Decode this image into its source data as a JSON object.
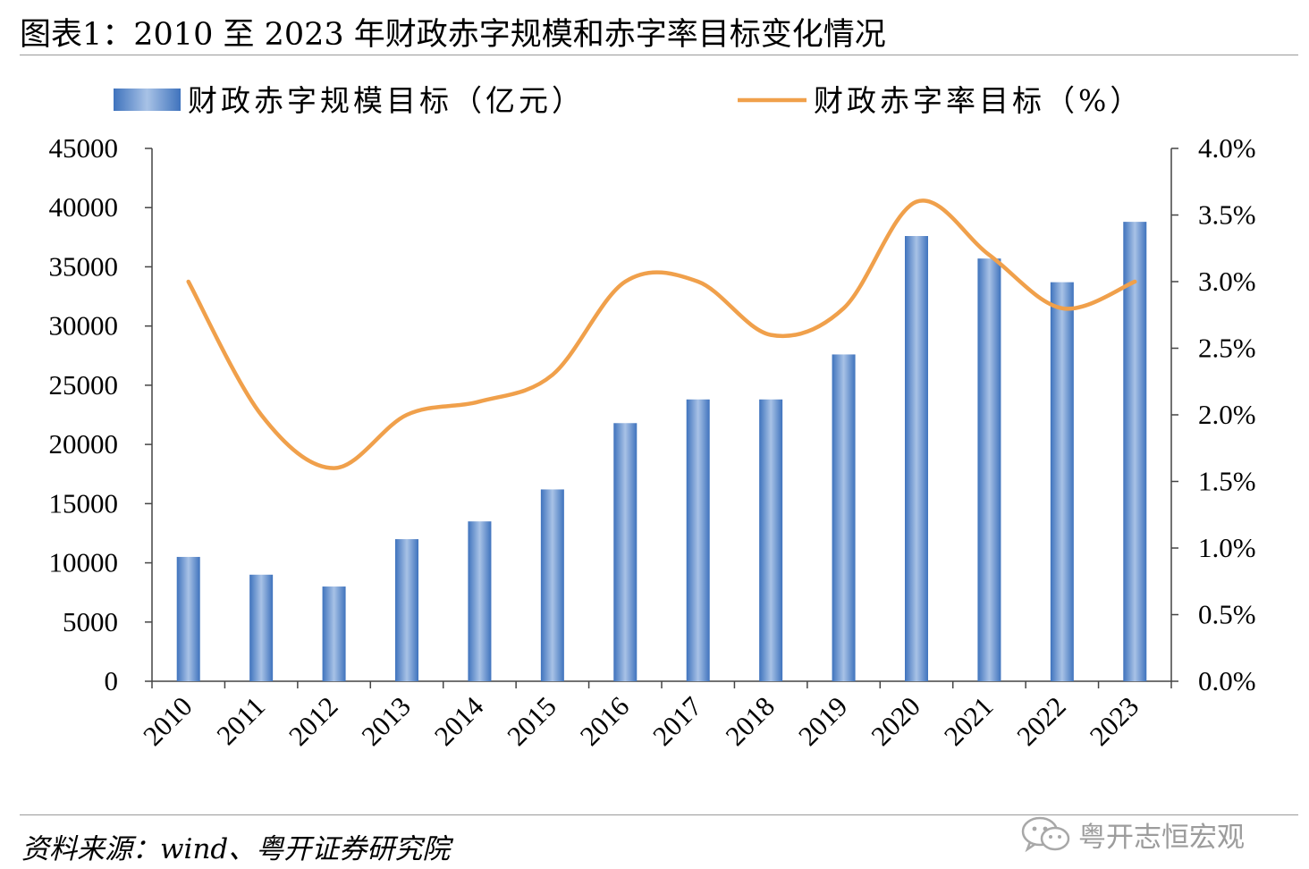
{
  "title": "图表1：2010 至 2023 年财政赤字规模和赤字率目标变化情况",
  "source": "资料来源：wind、粤开证券研究院",
  "watermark": {
    "text": "粤开志恒宏观",
    "icon": "wechat-icon"
  },
  "chart_data": {
    "type": "bar+line",
    "categories": [
      "2010",
      "2011",
      "2012",
      "2013",
      "2014",
      "2015",
      "2016",
      "2017",
      "2018",
      "2019",
      "2020",
      "2021",
      "2022",
      "2023"
    ],
    "series": [
      {
        "name": "财政赤字规模目标（亿元）",
        "type": "bar",
        "axis": "left",
        "values": [
          10500,
          9000,
          8000,
          12000,
          13500,
          16200,
          21800,
          23800,
          23800,
          27600,
          37600,
          35700,
          33700,
          38800
        ],
        "color": "#6d97cf"
      },
      {
        "name": "财政赤字率目标（%）",
        "type": "line",
        "axis": "right",
        "values": [
          3.0,
          2.0,
          1.6,
          2.0,
          2.1,
          2.3,
          3.0,
          3.0,
          2.6,
          2.8,
          3.6,
          3.2,
          2.8,
          3.0
        ],
        "color": "#f0a04b"
      }
    ],
    "y_left": {
      "min": 0,
      "max": 45000,
      "ticks": [
        "0",
        "5000",
        "10000",
        "15000",
        "20000",
        "25000",
        "30000",
        "35000",
        "40000",
        "45000"
      ]
    },
    "y_right": {
      "min": 0,
      "max": 4.0,
      "ticks": [
        "0.0%",
        "0.5%",
        "1.0%",
        "1.5%",
        "2.0%",
        "2.5%",
        "3.0%",
        "3.5%",
        "4.0%"
      ]
    },
    "legend_position": "top",
    "grid": false
  }
}
